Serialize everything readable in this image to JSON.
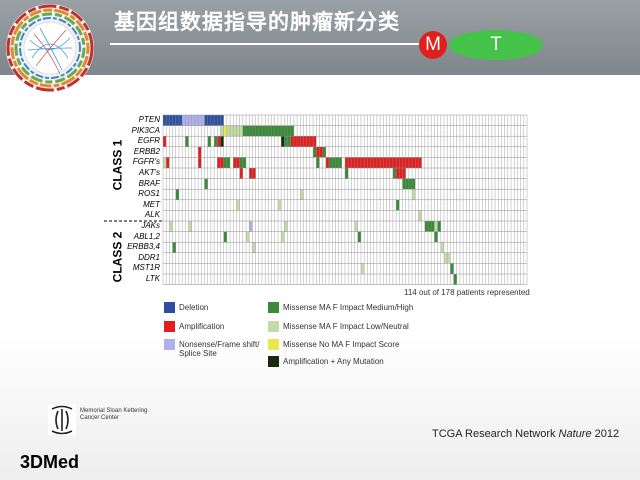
{
  "title": "基因组数据指导的肿瘤新分类",
  "badges": {
    "m": "M",
    "t": "T"
  },
  "genes": [
    "PTEN",
    "PIK3CA",
    "EGFR",
    "ERBB2",
    "FGFR's",
    "AKT's",
    "BRAF",
    "ROS1",
    "MET",
    "ALK",
    "JAKs",
    "ABL1,2",
    "ERBB3,4",
    "DDR1",
    "MST1R",
    "LTK"
  ],
  "classes": {
    "class1": "CLASS 1",
    "class2": "CLASS 2"
  },
  "count_note": "114 out of 178 patients represented",
  "legend": [
    {
      "label": "Deletion",
      "color": "#2e4fa0"
    },
    {
      "label": "Amplification",
      "color": "#e02020"
    },
    {
      "label": "Nonsense/Frame shift/ Splice Site",
      "color": "#b0b0ec"
    },
    {
      "label": "Missense MA F Impact Medium/High",
      "color": "#3a8a3a"
    },
    {
      "label": "Missense MA F Impact Low/Neutral",
      "color": "#c2dba8"
    },
    {
      "label": "Missense No MA F Impact Score",
      "color": "#e8e84a"
    },
    {
      "label": "Amplification + Any Mutation",
      "color": "#1a2a10"
    }
  ],
  "mskcc": {
    "line1": "Memorial Sloan Kettering",
    "line2": "Cancer Center"
  },
  "citation": {
    "text": "TCGA Research Network",
    "journal": "Nature",
    "year": "2012"
  },
  "brand": "3DMed",
  "matrix": {
    "columns": 114,
    "rows": [
      [
        [
          0,
          6,
          "del"
        ],
        [
          6,
          7,
          "ns"
        ],
        [
          13,
          6,
          "del"
        ]
      ],
      [
        [
          18,
          1,
          "ml"
        ],
        [
          19,
          1,
          "my"
        ],
        [
          20,
          1,
          "ml"
        ],
        [
          21,
          4,
          "ml"
        ],
        [
          25,
          16,
          "mh"
        ]
      ],
      [
        [
          0,
          1,
          "amp"
        ],
        [
          7,
          1,
          "mh"
        ],
        [
          14,
          1,
          "mh"
        ],
        [
          16,
          1,
          "mh"
        ],
        [
          17,
          1,
          "amp"
        ],
        [
          18,
          1,
          "combo"
        ],
        [
          37,
          1,
          "combo"
        ],
        [
          38,
          1,
          "mh"
        ],
        [
          39,
          1,
          "mh"
        ],
        [
          40,
          8,
          "amp"
        ]
      ],
      [
        [
          11,
          1,
          "amp"
        ],
        [
          47,
          1,
          "mh"
        ],
        [
          48,
          3,
          "amp"
        ],
        [
          50,
          1,
          "mh"
        ]
      ],
      [
        [
          0,
          1,
          "ml"
        ],
        [
          1,
          1,
          "amp"
        ],
        [
          11,
          1,
          "amp"
        ],
        [
          17,
          2,
          "amp"
        ],
        [
          19,
          2,
          "mh"
        ],
        [
          22,
          2,
          "amp"
        ],
        [
          24,
          2,
          "mh"
        ],
        [
          48,
          1,
          "mh"
        ],
        [
          51,
          1,
          "amp"
        ],
        [
          52,
          4,
          "mh"
        ],
        [
          57,
          24,
          "amp"
        ]
      ],
      [
        [
          24,
          1,
          "amp"
        ],
        [
          27,
          2,
          "amp"
        ],
        [
          57,
          1,
          "mh"
        ],
        [
          72,
          1,
          "mh"
        ],
        [
          73,
          3,
          "amp"
        ]
      ],
      [
        [
          13,
          1,
          "mh"
        ],
        [
          75,
          4,
          "mh"
        ]
      ],
      [
        [
          4,
          1,
          "mh"
        ],
        [
          43,
          1,
          "ml"
        ],
        [
          78,
          1,
          "ml"
        ]
      ],
      [
        [
          23,
          1,
          "ml"
        ],
        [
          36,
          1,
          "ml"
        ],
        [
          73,
          1,
          "mh"
        ]
      ],
      [
        [
          80,
          1,
          "ml"
        ]
      ],
      [
        [
          2,
          1,
          "ml"
        ],
        [
          8,
          1,
          "ml"
        ],
        [
          27,
          1,
          "ns"
        ],
        [
          38,
          1,
          "ml"
        ],
        [
          60,
          1,
          "ml"
        ],
        [
          82,
          3,
          "mh"
        ],
        [
          85,
          1,
          "ml"
        ],
        [
          86,
          1,
          "mh"
        ]
      ],
      [
        [
          19,
          1,
          "mh"
        ],
        [
          26,
          1,
          "ml"
        ],
        [
          37,
          1,
          "ml"
        ],
        [
          61,
          1,
          "mh"
        ],
        [
          85,
          1,
          "mh"
        ]
      ],
      [
        [
          3,
          1,
          "mh"
        ],
        [
          28,
          1,
          "ml"
        ],
        [
          87,
          1,
          "ml"
        ]
      ],
      [
        [
          88,
          1,
          "ml"
        ],
        [
          89,
          1,
          "ml"
        ]
      ],
      [
        [
          62,
          1,
          "ml"
        ],
        [
          90,
          1,
          "mh"
        ]
      ],
      [
        [
          91,
          1,
          "mh"
        ]
      ]
    ]
  }
}
